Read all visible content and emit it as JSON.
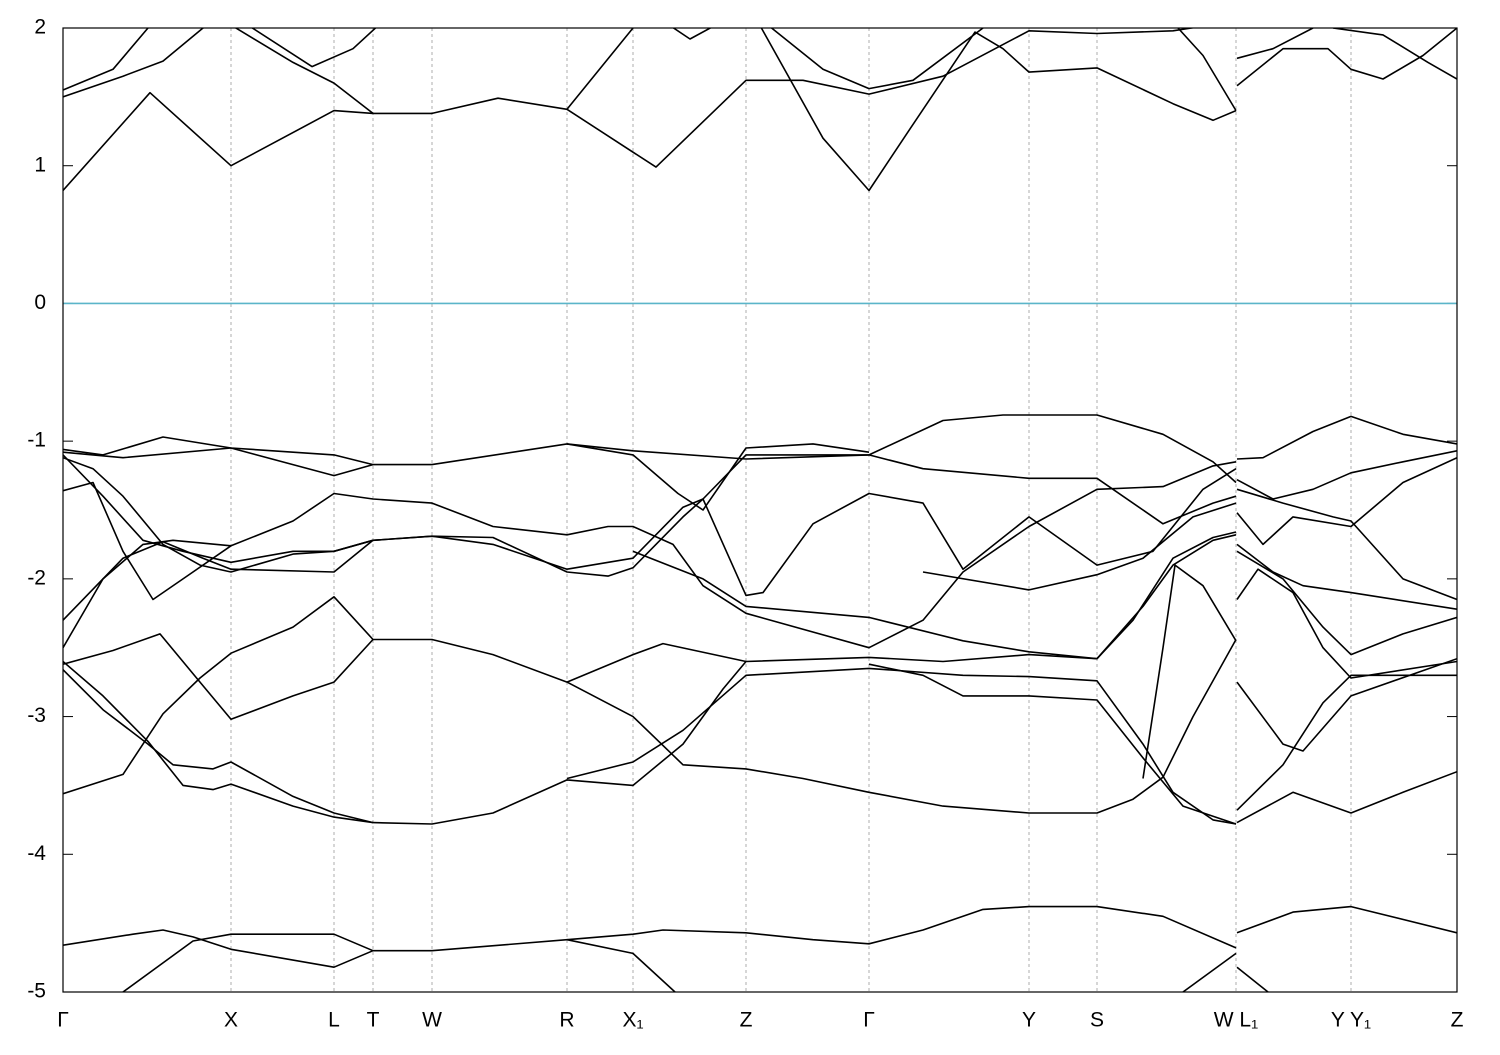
{
  "chart_data": {
    "type": "line",
    "xlim": [
      0,
      1394
    ],
    "ylim": [
      -5,
      2
    ],
    "yticks": [
      -5,
      -4,
      -3,
      -2,
      -1,
      0,
      1,
      2
    ],
    "xticks": [
      {
        "value": 0,
        "label": "Γ"
      },
      {
        "value": 168,
        "label": "X"
      },
      {
        "value": 271,
        "label": "L"
      },
      {
        "value": 310,
        "label": "T"
      },
      {
        "value": 369,
        "label": "W"
      },
      {
        "value": 504,
        "label": "R"
      },
      {
        "value": 570,
        "label": "X₁"
      },
      {
        "value": 683,
        "label": "Z"
      },
      {
        "value": 806,
        "label": "Γ"
      },
      {
        "value": 966,
        "label": "Y"
      },
      {
        "value": 1034,
        "label": "S"
      },
      {
        "value": 1173,
        "label": "W L₁"
      },
      {
        "value": 1288,
        "label": "Y Y₁"
      },
      {
        "value": 1394,
        "label": "Z"
      }
    ],
    "xgrid": true,
    "line_color": "#000000",
    "reference_line": {
      "value": 0,
      "color": "#5bb5c9"
    },
    "series": [
      {
        "x": [
          0,
          87,
          168,
          271,
          310,
          369,
          435,
          504,
          593,
          683,
          740,
          806,
          880,
          966,
          1034,
          1110,
          1173
        ],
        "values": [
          0.82,
          1.53,
          1.0,
          1.4,
          1.38,
          1.38,
          1.49,
          1.41,
          0.99,
          1.62,
          1.62,
          1.52,
          1.65,
          1.98,
          1.96,
          1.98,
          2.05
        ]
      },
      {
        "x": [
          0,
          60,
          100,
          140,
          190
        ],
        "values": [
          1.5,
          1.65,
          1.76,
          2.0,
          2.2
        ]
      },
      {
        "x": [
          0,
          50,
          85
        ],
        "values": [
          1.55,
          1.7,
          2.0
        ]
      },
      {
        "x": [
          168,
          249,
          290,
          320
        ],
        "values": [
          2.1,
          1.72,
          1.85,
          2.05
        ]
      },
      {
        "x": [
          150,
          230,
          271,
          310
        ],
        "values": [
          2.1,
          1.75,
          1.6,
          1.38
        ]
      },
      {
        "x": [
          504,
          570,
          590
        ],
        "values": [
          1.41,
          2.0,
          2.15
        ]
      },
      {
        "x": [
          590,
          627,
          660
        ],
        "values": [
          2.1,
          1.92,
          2.05
        ]
      },
      {
        "x": [
          683,
          760,
          806,
          850,
          912,
          940,
          966,
          1034,
          1110,
          1150,
          1173
        ],
        "values": [
          2.2,
          1.2,
          0.82,
          1.3,
          1.97,
          1.85,
          1.68,
          1.71,
          1.45,
          1.33,
          1.4
        ]
      },
      {
        "x": [
          700,
          760,
          806,
          850,
          920
        ],
        "values": [
          2.05,
          1.7,
          1.56,
          1.62,
          2.0
        ]
      },
      {
        "x": [
          1115,
          1140,
          1173
        ],
        "values": [
          2.0,
          1.8,
          1.4
        ]
      },
      {
        "x": [
          1174,
          1210,
          1250
        ],
        "values": [
          1.78,
          1.85,
          2.0
        ]
      },
      {
        "x": [
          1174,
          1220,
          1265,
          1288,
          1320,
          1360,
          1394
        ],
        "values": [
          1.58,
          1.85,
          1.85,
          1.7,
          1.63,
          1.8,
          2.0
        ]
      },
      {
        "x": [
          1270,
          1320,
          1365,
          1394
        ],
        "values": [
          2.0,
          1.95,
          1.75,
          1.63
        ]
      },
      {
        "x": [
          0,
          70,
          100,
          130,
          168,
          271,
          310,
          369,
          504,
          570,
          600,
          683,
          750,
          806,
          860,
          920,
          966,
          1034,
          1100,
          1173
        ],
        "values": [
          -4.66,
          -4.58,
          -4.55,
          -4.6,
          -4.69,
          -4.82,
          -4.7,
          -4.7,
          -4.62,
          -4.58,
          -4.55,
          -4.57,
          -4.62,
          -4.65,
          -4.55,
          -4.4,
          -4.38,
          -4.38,
          -4.45,
          -4.68
        ]
      },
      {
        "x": [
          60,
          130,
          168,
          271,
          310
        ],
        "values": [
          -5.0,
          -4.63,
          -4.58,
          -4.58,
          -4.7
        ]
      },
      {
        "x": [
          504,
          570,
          612
        ],
        "values": [
          -4.62,
          -4.72,
          -5.0
        ]
      },
      {
        "x": [
          1120,
          1173
        ],
        "values": [
          -5.0,
          -4.72
        ]
      },
      {
        "x": [
          1174,
          1230,
          1288,
          1394
        ],
        "values": [
          -4.57,
          -4.42,
          -4.38,
          -4.57
        ]
      },
      {
        "x": [
          1174,
          1205
        ],
        "values": [
          -4.82,
          -5.0
        ]
      },
      {
        "x": [
          0,
          60,
          80,
          100,
          137,
          168,
          230,
          271,
          310,
          369,
          430,
          504,
          570,
          620,
          683,
          740,
          806,
          880,
          966,
          1034,
          1070,
          1100,
          1130,
          1173
        ],
        "values": [
          -3.56,
          -3.42,
          -3.2,
          -2.98,
          -2.72,
          -2.54,
          -2.35,
          -2.13,
          -2.44,
          -2.44,
          -2.55,
          -2.75,
          -3.0,
          -3.35,
          -3.38,
          -3.45,
          -3.55,
          -3.65,
          -3.7,
          -3.7,
          -3.6,
          -3.44,
          -3.0,
          -2.44
        ]
      },
      {
        "x": [
          0,
          50,
          97,
          137,
          168,
          230,
          271,
          310
        ],
        "values": [
          -2.62,
          -2.52,
          -2.4,
          -2.75,
          -3.02,
          -2.85,
          -2.75,
          -2.44
        ]
      },
      {
        "x": [
          0,
          40,
          85,
          110,
          150,
          168,
          230,
          271,
          310,
          369,
          430,
          504,
          570,
          620,
          660,
          683,
          806,
          880,
          966,
          1034,
          1080,
          1110,
          1150,
          1173
        ],
        "values": [
          -2.66,
          -2.95,
          -3.2,
          -3.35,
          -3.38,
          -3.33,
          -3.58,
          -3.7,
          -3.77,
          -3.78,
          -3.7,
          -3.46,
          -3.5,
          -3.2,
          -2.8,
          -2.6,
          -2.57,
          -2.6,
          -2.55,
          -2.58,
          -2.2,
          -1.9,
          -1.72,
          -1.68
        ]
      },
      {
        "x": [
          0,
          40,
          85,
          120,
          150,
          168,
          230,
          271,
          310
        ],
        "values": [
          -2.6,
          -2.85,
          -3.18,
          -3.5,
          -3.53,
          -3.49,
          -3.65,
          -3.73,
          -3.77
        ]
      },
      {
        "x": [
          504,
          570,
          600,
          683
        ],
        "values": [
          -2.75,
          -2.55,
          -2.47,
          -2.6
        ]
      },
      {
        "x": [
          504,
          570,
          620,
          683,
          806,
          900,
          966,
          1034,
          1080,
          1110,
          1150,
          1173
        ],
        "values": [
          -3.45,
          -3.33,
          -3.1,
          -2.7,
          -2.65,
          -2.7,
          -2.71,
          -2.74,
          -3.2,
          -3.55,
          -3.75,
          -3.78
        ]
      },
      {
        "x": [
          806,
          860,
          900,
          966,
          1034,
          1080,
          1120,
          1173
        ],
        "values": [
          -2.62,
          -2.7,
          -2.85,
          -2.85,
          -2.88,
          -3.3,
          -3.65,
          -3.78
        ]
      },
      {
        "x": [
          1080,
          1100,
          1112,
          1140,
          1173
        ],
        "values": [
          -3.45,
          -2.5,
          -1.9,
          -2.05,
          -2.45
        ]
      },
      {
        "x": [
          0,
          40,
          100,
          168,
          271,
          310,
          369,
          504,
          570,
          683,
          806,
          880,
          940,
          1034,
          1100,
          1150,
          1173
        ],
        "values": [
          -1.06,
          -1.1,
          -0.97,
          -1.05,
          -1.1,
          -1.17,
          -1.17,
          -1.02,
          -1.07,
          -1.13,
          -1.1,
          -0.85,
          -0.81,
          -0.81,
          -0.95,
          -1.15,
          -1.3
        ]
      },
      {
        "x": [
          0,
          60,
          168,
          271,
          310
        ],
        "values": [
          -1.08,
          -1.12,
          -1.05,
          -1.25,
          -1.17
        ]
      },
      {
        "x": [
          0,
          30,
          60,
          90,
          120,
          168,
          230,
          271,
          310,
          369,
          430,
          504,
          545,
          570,
          610,
          640,
          683,
          806,
          860,
          900,
          966,
          1034,
          1100,
          1150,
          1173
        ],
        "values": [
          -1.36,
          -1.3,
          -1.8,
          -2.15,
          -2.0,
          -1.76,
          -1.58,
          -1.38,
          -1.42,
          -1.45,
          -1.62,
          -1.68,
          -1.62,
          -1.62,
          -1.75,
          -2.05,
          -2.25,
          -2.5,
          -2.3,
          -1.95,
          -1.62,
          -1.35,
          -1.33,
          -1.18,
          -1.15
        ]
      },
      {
        "x": [
          0,
          40,
          80,
          120,
          168,
          230,
          271,
          310,
          369,
          430,
          504,
          570,
          620,
          640,
          683,
          740,
          806,
          860,
          966,
          1034,
          1100,
          1150,
          1173
        ],
        "values": [
          -1.1,
          -1.4,
          -1.72,
          -1.8,
          -1.88,
          -1.8,
          -1.8,
          -1.72,
          -1.69,
          -1.75,
          -1.93,
          -1.85,
          -1.48,
          -1.42,
          -1.1,
          -1.1,
          -1.1,
          -1.2,
          -1.27,
          -1.27,
          -1.6,
          -1.45,
          -1.4
        ]
      },
      {
        "x": [
          0,
          30,
          60,
          100,
          137,
          168,
          230,
          271,
          310,
          369,
          430,
          504,
          545,
          570,
          620,
          640,
          683,
          700,
          750,
          806,
          860,
          900,
          966,
          1034,
          1090,
          1140,
          1173
        ],
        "values": [
          -1.12,
          -1.2,
          -1.4,
          -1.75,
          -1.9,
          -1.95,
          -1.82,
          -1.8,
          -1.72,
          -1.69,
          -1.7,
          -1.95,
          -1.98,
          -1.92,
          -1.55,
          -1.42,
          -2.12,
          -2.1,
          -1.6,
          -1.38,
          -1.45,
          -1.93,
          -1.55,
          -1.9,
          -1.8,
          -1.35,
          -1.2
        ]
      },
      {
        "x": [
          0,
          40,
          80,
          110,
          168
        ],
        "values": [
          -2.5,
          -2.0,
          -1.75,
          -1.72,
          -1.76
        ]
      },
      {
        "x": [
          0,
          60,
          100,
          140,
          168,
          271,
          310
        ],
        "values": [
          -2.3,
          -1.85,
          -1.73,
          -1.85,
          -1.93,
          -1.95,
          -1.72
        ]
      },
      {
        "x": [
          504,
          570,
          615,
          640,
          683,
          750,
          806
        ],
        "values": [
          -1.02,
          -1.1,
          -1.38,
          -1.5,
          -1.05,
          -1.02,
          -1.08
        ]
      },
      {
        "x": [
          570,
          640,
          683,
          806,
          900,
          966,
          1034,
          1070,
          1110,
          1150,
          1173
        ],
        "values": [
          -1.8,
          -2.0,
          -2.2,
          -2.28,
          -2.45,
          -2.53,
          -2.58,
          -2.3,
          -1.85,
          -1.7,
          -1.66
        ]
      },
      {
        "x": [
          860,
          966,
          1034,
          1080,
          1130,
          1173
        ],
        "values": [
          -1.95,
          -2.08,
          -1.97,
          -1.85,
          -1.55,
          -1.45
        ]
      },
      {
        "x": [
          1174,
          1200,
          1250,
          1288,
          1340,
          1394
        ],
        "values": [
          -1.13,
          -1.12,
          -0.93,
          -0.82,
          -0.95,
          -1.02
        ]
      },
      {
        "x": [
          1174,
          1210,
          1250,
          1288,
          1340,
          1394
        ],
        "values": [
          -1.28,
          -1.42,
          -1.35,
          -1.23,
          -1.15,
          -1.07
        ]
      },
      {
        "x": [
          1174,
          1220,
          1270,
          1288,
          1340,
          1394
        ],
        "values": [
          -1.35,
          -1.45,
          -1.55,
          -1.58,
          -2.0,
          -2.15
        ]
      },
      {
        "x": [
          1174,
          1200,
          1230,
          1288,
          1340,
          1394
        ],
        "values": [
          -1.52,
          -1.75,
          -1.55,
          -1.62,
          -1.3,
          -1.12
        ]
      },
      {
        "x": [
          1174,
          1210,
          1240,
          1288,
          1394
        ],
        "values": [
          -1.75,
          -1.95,
          -2.05,
          -2.1,
          -2.22
        ]
      },
      {
        "x": [
          1174,
          1220,
          1260,
          1288,
          1340,
          1394
        ],
        "values": [
          -1.8,
          -2.0,
          -2.35,
          -2.55,
          -2.4,
          -2.28
        ]
      },
      {
        "x": [
          1174,
          1195,
          1230,
          1260,
          1288,
          1394
        ],
        "values": [
          -2.15,
          -1.93,
          -2.1,
          -2.5,
          -2.72,
          -2.6
        ]
      },
      {
        "x": [
          1174,
          1220,
          1240,
          1288,
          1394
        ],
        "values": [
          -2.75,
          -3.2,
          -3.25,
          -2.85,
          -2.58
        ]
      },
      {
        "x": [
          1174,
          1220,
          1260,
          1288,
          1394
        ],
        "values": [
          -3.68,
          -3.35,
          -2.9,
          -2.7,
          -2.7
        ]
      },
      {
        "x": [
          1174,
          1230,
          1288,
          1340,
          1394
        ],
        "values": [
          -3.77,
          -3.55,
          -3.7,
          -3.55,
          -3.4
        ]
      }
    ]
  }
}
